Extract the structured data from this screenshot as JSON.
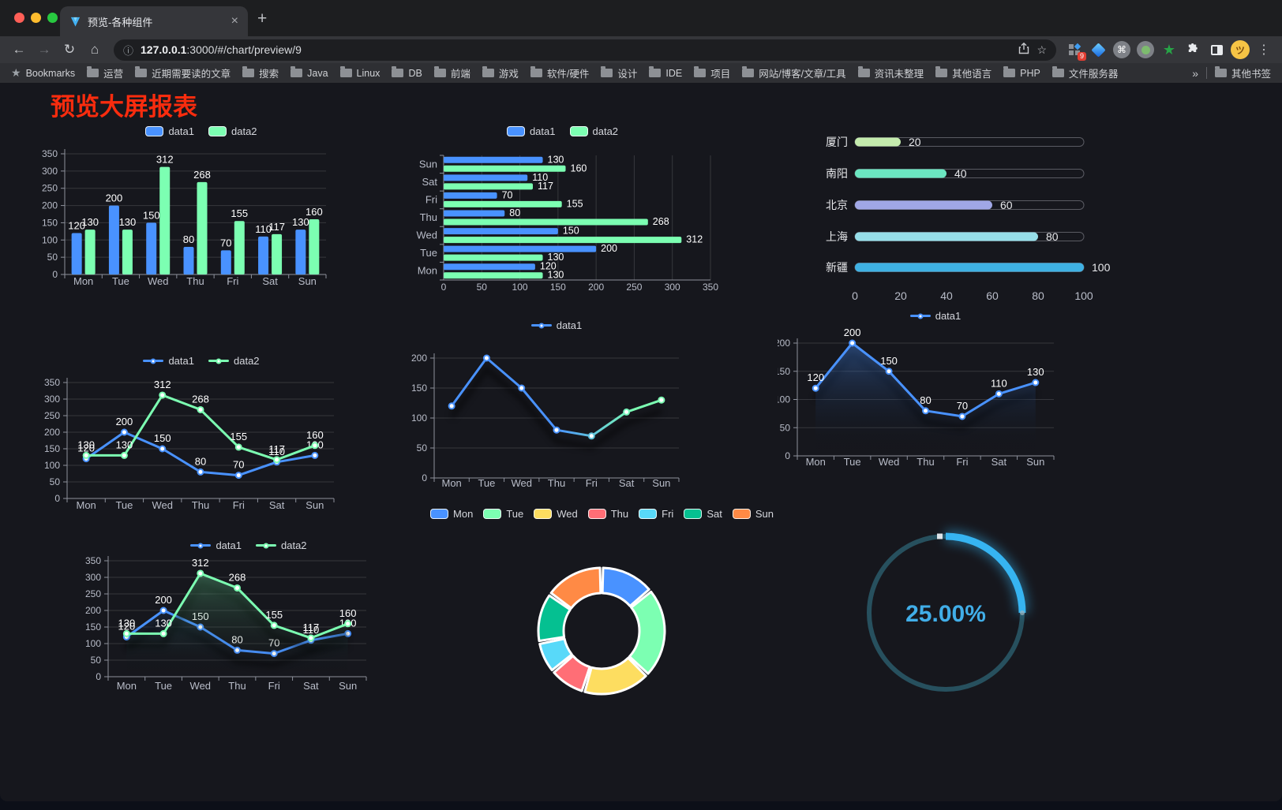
{
  "browser": {
    "tab_title": "预览-各种组件",
    "tab_close": "×",
    "new_tab_plus": "+",
    "nav": {
      "back": "←",
      "forward": "→",
      "reload": "↻",
      "home": "⌂"
    },
    "url_host": "127.0.0.1",
    "url_rest": ":3000/#/chart/preview/9",
    "url_info_icon": "ⓘ",
    "star_icon": "☆",
    "extension_badge": "9",
    "menu_dots": "⋮",
    "bookmarks_label": "Bookmarks",
    "bookmark_folders": [
      "运营",
      "近期需要读的文章",
      "搜索",
      "Java",
      "Linux",
      "DB",
      "前端",
      "游戏",
      "软件/硬件",
      "设计",
      "IDE",
      "项目",
      "网站/博客/文章/工具",
      "资讯未整理",
      "其他语言",
      "PHP",
      "文件服务器"
    ],
    "bookmarks_overflow": "»",
    "other_bookmarks": "其他书签"
  },
  "page": {
    "title": "预览大屏报表",
    "title_color": "#f92c0e"
  },
  "chart_data": [
    {
      "id": "bar-grouped",
      "type": "bar",
      "categories": [
        "Mon",
        "Tue",
        "Wed",
        "Thu",
        "Fri",
        "Sat",
        "Sun"
      ],
      "series": [
        {
          "name": "data1",
          "color": "#4992ff",
          "values": [
            120,
            200,
            150,
            80,
            70,
            110,
            130
          ]
        },
        {
          "name": "data2",
          "color": "#7cffb2",
          "values": [
            130,
            130,
            312,
            268,
            155,
            117,
            160
          ]
        }
      ],
      "ylim": [
        0,
        350
      ],
      "ystep": 50,
      "grid": true,
      "legend_position": "top"
    },
    {
      "id": "bar-horizontal",
      "type": "bar",
      "orientation": "horizontal",
      "categories": [
        "Mon",
        "Tue",
        "Wed",
        "Thu",
        "Fri",
        "Sat",
        "Sun"
      ],
      "row_order_top_to_bottom": [
        "Sun",
        "Sat",
        "Fri",
        "Thu",
        "Wed",
        "Tue",
        "Mon"
      ],
      "series": [
        {
          "name": "data1",
          "color": "#4992ff",
          "values": [
            120,
            200,
            150,
            80,
            70,
            110,
            130
          ]
        },
        {
          "name": "data2",
          "color": "#7cffb2",
          "values": [
            130,
            130,
            312,
            268,
            155,
            117,
            160
          ]
        }
      ],
      "xlim": [
        0,
        350
      ],
      "xstep": 50,
      "grid": true,
      "legend_position": "top"
    },
    {
      "id": "progress-bars",
      "type": "bar",
      "orientation": "horizontal-progress",
      "categories": [
        "厦门",
        "南阳",
        "北京",
        "上海",
        "新疆"
      ],
      "values": [
        20,
        40,
        60,
        80,
        100
      ],
      "colors": [
        "#c4ebad",
        "#6be6c1",
        "#a0a7e6",
        "#96dee8",
        "#3fb1e3"
      ],
      "xlim": [
        0,
        100
      ],
      "xticks": [
        0,
        20,
        40,
        60,
        80,
        100
      ]
    },
    {
      "id": "line-dual",
      "type": "line",
      "categories": [
        "Mon",
        "Tue",
        "Wed",
        "Thu",
        "Fri",
        "Sat",
        "Sun"
      ],
      "series": [
        {
          "name": "data1",
          "color": "#4992ff",
          "values": [
            120,
            200,
            150,
            80,
            70,
            110,
            130
          ]
        },
        {
          "name": "data2",
          "color": "#7cffb2",
          "values": [
            130,
            130,
            312,
            268,
            155,
            117,
            160
          ]
        }
      ],
      "ylim": [
        0,
        350
      ],
      "ystep": 50,
      "point_labels": true,
      "legend_position": "top"
    },
    {
      "id": "line-gradient",
      "type": "line",
      "categories": [
        "Mon",
        "Tue",
        "Wed",
        "Thu",
        "Fri",
        "Sat",
        "Sun"
      ],
      "series": [
        {
          "name": "data1",
          "color": "#4992ff",
          "values": [
            120,
            200,
            150,
            80,
            70,
            110,
            130
          ]
        }
      ],
      "gradient_stroke": [
        "#4992ff",
        "#7cffb2"
      ],
      "ylim": [
        0,
        200
      ],
      "ystep": 50,
      "point_labels": false,
      "shadow": true,
      "legend_position": "top"
    },
    {
      "id": "line-area",
      "type": "area",
      "categories": [
        "Mon",
        "Tue",
        "Wed",
        "Thu",
        "Fri",
        "Sat",
        "Sun"
      ],
      "series": [
        {
          "name": "data1",
          "color": "#4992ff",
          "values": [
            120,
            200,
            150,
            80,
            70,
            110,
            130
          ],
          "area": "rgba(73,146,255,0.38)"
        }
      ],
      "ylim": [
        0,
        200
      ],
      "ystep": 50,
      "point_labels": true,
      "shadow": true,
      "legend_position": "top"
    },
    {
      "id": "line-dual-area",
      "type": "area",
      "categories": [
        "Mon",
        "Tue",
        "Wed",
        "Thu",
        "Fri",
        "Sat",
        "Sun"
      ],
      "series": [
        {
          "name": "data1",
          "color": "#4992ff",
          "values": [
            120,
            200,
            150,
            80,
            70,
            110,
            130
          ],
          "area": "rgba(73,146,255,0.35)"
        },
        {
          "name": "data2",
          "color": "#7cffb2",
          "values": [
            130,
            130,
            312,
            268,
            155,
            117,
            160
          ],
          "area": "rgba(124,255,178,0.35)"
        }
      ],
      "ylim": [
        0,
        350
      ],
      "ystep": 50,
      "point_labels": true,
      "shadow": true,
      "legend_position": "top"
    },
    {
      "id": "donut",
      "type": "pie",
      "categories": [
        "Mon",
        "Tue",
        "Wed",
        "Thu",
        "Fri",
        "Sat",
        "Sun"
      ],
      "values": [
        120,
        200,
        150,
        80,
        70,
        110,
        130
      ],
      "colors": [
        "#4992ff",
        "#7cffb2",
        "#fddd60",
        "#ff6e76",
        "#58d9f9",
        "#05c091",
        "#ff8a45"
      ],
      "inner_radius_ratio": 0.6,
      "border_color": "#ffffff",
      "legend_position": "top"
    },
    {
      "id": "gauge",
      "type": "gauge",
      "value": 25,
      "label": "25.00%",
      "progress_color": "#36b4f1",
      "track_color": "#27505e",
      "text_color": "#41aee8"
    }
  ]
}
